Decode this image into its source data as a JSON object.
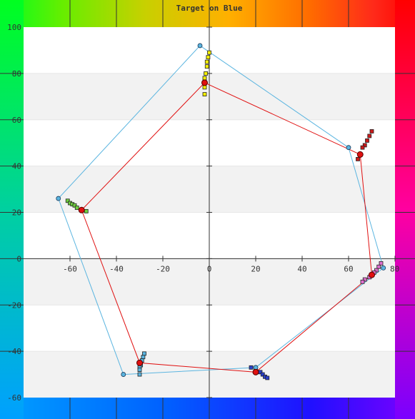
{
  "chart_data": {
    "type": "scatter",
    "title": "Target on Blue",
    "xlabel": "",
    "ylabel": "",
    "xlim": [
      -80,
      80
    ],
    "ylim": [
      -60,
      100
    ],
    "x_ticks": [
      -60,
      -40,
      -20,
      0,
      20,
      40,
      60,
      80
    ],
    "y_ticks": [
      -60,
      -40,
      -20,
      0,
      20,
      40,
      60,
      80,
      100
    ],
    "grid": "horizontal bands",
    "legend": "none",
    "colors": {
      "blue_line": "#5bb5e0",
      "red_line": "#e01010",
      "band": "#f2f2f2",
      "axis": "#333333"
    },
    "series": [
      {
        "role": "outer-polygon",
        "color": "#5bb5e0",
        "points": [
          [
            -4,
            92
          ],
          [
            60,
            48
          ],
          [
            75,
            -4
          ],
          [
            20,
            -47
          ],
          [
            -37,
            -50
          ],
          [
            -65,
            26
          ]
        ]
      },
      {
        "role": "inner-polygon",
        "color": "#e01010",
        "points": [
          [
            -2,
            76
          ],
          [
            65,
            45
          ],
          [
            70,
            -7
          ],
          [
            20,
            -49
          ],
          [
            -30,
            -45
          ],
          [
            -55,
            21
          ]
        ]
      },
      {
        "role": "marker-trail",
        "color": "#f5f000",
        "points": [
          [
            0,
            89
          ],
          [
            -0.5,
            87
          ],
          [
            -1,
            85
          ],
          [
            -1,
            83
          ],
          [
            -1.5,
            80
          ],
          [
            -2,
            78
          ],
          [
            -2,
            74
          ],
          [
            -2,
            71
          ]
        ]
      },
      {
        "role": "marker-trail",
        "color": "#cc1a1a",
        "points": [
          [
            70,
            55
          ],
          [
            69,
            53
          ],
          [
            68,
            51
          ],
          [
            67,
            49
          ],
          [
            66,
            48
          ],
          [
            64,
            43
          ]
        ]
      },
      {
        "role": "marker-trail",
        "color": "#e070d0",
        "points": [
          [
            74,
            -2
          ],
          [
            73,
            -3.5
          ],
          [
            72,
            -5
          ],
          [
            71,
            -6
          ],
          [
            70,
            -7
          ],
          [
            69,
            -8
          ],
          [
            67,
            -9
          ],
          [
            66,
            -10
          ]
        ]
      },
      {
        "role": "marker-trail",
        "color": "#2a40d0",
        "points": [
          [
            18,
            -47
          ],
          [
            20,
            -48
          ],
          [
            22,
            -49
          ],
          [
            23,
            -50
          ],
          [
            24,
            -51
          ],
          [
            25,
            -51.5
          ]
        ]
      },
      {
        "role": "marker-trail",
        "color": "#5bb5e0",
        "points": [
          [
            -28,
            -41
          ],
          [
            -28.5,
            -42.5
          ],
          [
            -29,
            -44
          ],
          [
            -29.5,
            -46
          ],
          [
            -30,
            -47
          ],
          [
            -30,
            -48
          ],
          [
            -30,
            -50
          ]
        ]
      },
      {
        "role": "marker-trail",
        "color": "#70d040",
        "points": [
          [
            -61,
            25
          ],
          [
            -60,
            24
          ],
          [
            -59,
            23.5
          ],
          [
            -58,
            23
          ],
          [
            -57,
            22
          ],
          [
            -55,
            21
          ],
          [
            -53,
            20.5
          ]
        ]
      }
    ]
  }
}
